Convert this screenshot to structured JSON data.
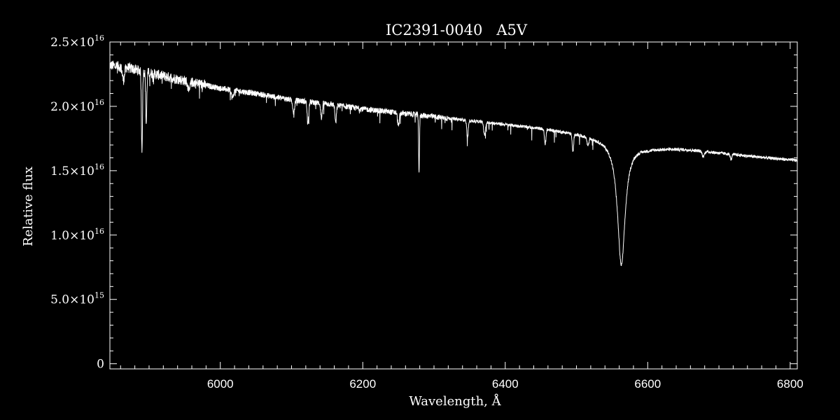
{
  "chart_data": {
    "type": "line",
    "title": "IC2391-0040   A5V",
    "xlabel": "Wavelength, Å",
    "ylabel": "Relative flux",
    "xlim": [
      5845,
      6810
    ],
    "ylim": [
      -400000000000000.0,
      2.5e+16
    ],
    "x_ticks": [
      {
        "value": 6000,
        "label": "6000"
      },
      {
        "value": 6200,
        "label": "6200"
      },
      {
        "value": 6400,
        "label": "6400"
      },
      {
        "value": 6600,
        "label": "6600"
      },
      {
        "value": 6800,
        "label": "6800"
      }
    ],
    "y_ticks": [
      {
        "value": 0,
        "mantissa": "0",
        "exponent": ""
      },
      {
        "value": 5000000000000000.0,
        "mantissa": "5.0×10",
        "exponent": "15"
      },
      {
        "value": 1e+16,
        "mantissa": "1.0×10",
        "exponent": "16"
      },
      {
        "value": 1.5e+16,
        "mantissa": "1.5×10",
        "exponent": "16"
      },
      {
        "value": 2e+16,
        "mantissa": "2.0×10",
        "exponent": "16"
      },
      {
        "value": 2.5e+16,
        "mantissa": "2.5×10",
        "exponent": "16"
      }
    ],
    "grid": false,
    "colors": {
      "background": "#000000",
      "line": "#ffffff",
      "axes": "#ffffff"
    },
    "series": [
      {
        "continuum": [
          [
            5845,
            2.32e+16
          ],
          [
            5870,
            2.3e+16
          ],
          [
            5900,
            2.26e+16
          ],
          [
            5950,
            2.2e+16
          ],
          [
            6000,
            2.14e+16
          ],
          [
            6050,
            2.1e+16
          ],
          [
            6100,
            2.05e+16
          ],
          [
            6150,
            2.02e+16
          ],
          [
            6200,
            1.98e+16
          ],
          [
            6250,
            1.95e+16
          ],
          [
            6300,
            1.92e+16
          ],
          [
            6350,
            1.89e+16
          ],
          [
            6400,
            1.86e+16
          ],
          [
            6450,
            1.83e+16
          ],
          [
            6500,
            1.79e+16
          ],
          [
            6550,
            1.74e+16
          ],
          [
            6600,
            1.68e+16
          ],
          [
            6650,
            1.67e+16
          ],
          [
            6700,
            1.64e+16
          ],
          [
            6750,
            1.61e+16
          ],
          [
            6810,
            1.58e+16
          ]
        ],
        "absorption_lines": [
          {
            "center": 5864,
            "depth": 1000000000000000.0,
            "width": 1.5
          },
          {
            "center": 5890,
            "depth": 6000000000000000.0,
            "width": 0.8
          },
          {
            "center": 5896,
            "depth": 4000000000000000.0,
            "width": 0.8
          },
          {
            "center": 5956,
            "depth": 800000000000000.0,
            "width": 1.5
          },
          {
            "center": 6017,
            "depth": 600000000000000.0,
            "width": 1.5
          },
          {
            "center": 6103,
            "depth": 1000000000000000.0,
            "width": 1.2
          },
          {
            "center": 6123,
            "depth": 1800000000000000.0,
            "width": 1.0
          },
          {
            "center": 6142,
            "depth": 1200000000000000.0,
            "width": 1.0
          },
          {
            "center": 6162,
            "depth": 1400000000000000.0,
            "width": 1.0
          },
          {
            "center": 6250,
            "depth": 1000000000000000.0,
            "width": 1.2
          },
          {
            "center": 6279,
            "depth": 4500000000000000.0,
            "width": 0.6
          },
          {
            "center": 6347,
            "depth": 1400000000000000.0,
            "width": 1.0
          },
          {
            "center": 6371,
            "depth": 1000000000000000.0,
            "width": 1.2
          },
          {
            "center": 6456,
            "depth": 1200000000000000.0,
            "width": 1.0
          },
          {
            "center": 6495,
            "depth": 1400000000000000.0,
            "width": 1.0
          },
          {
            "center": 6516,
            "depth": 600000000000000.0,
            "width": 1.2
          },
          {
            "center": 6563,
            "depth": 9600000000000000.0,
            "width": 6.5
          },
          {
            "center": 6678,
            "depth": 400000000000000.0,
            "width": 1.5
          },
          {
            "center": 6717,
            "depth": 400000000000000.0,
            "width": 1.2
          }
        ]
      }
    ]
  }
}
